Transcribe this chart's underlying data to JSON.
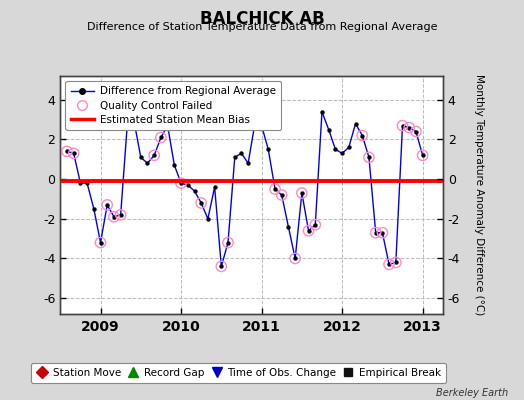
{
  "title": "BALCHICK AB",
  "subtitle": "Difference of Station Temperature Data from Regional Average",
  "ylabel": "Monthly Temperature Anomaly Difference (°C)",
  "bias_value": -0.1,
  "xlim": [
    2008.5,
    2013.25
  ],
  "ylim": [
    -6.8,
    5.2
  ],
  "background_color": "#d8d8d8",
  "plot_bg_color": "#ffffff",
  "grid_color": "#bbbbbb",
  "berkeley_earth_text": "Berkeley Earth",
  "x_values": [
    2008.583,
    2008.667,
    2008.75,
    2008.833,
    2008.917,
    2009.0,
    2009.083,
    2009.167,
    2009.25,
    2009.333,
    2009.417,
    2009.5,
    2009.583,
    2009.667,
    2009.75,
    2009.833,
    2009.917,
    2010.0,
    2010.083,
    2010.167,
    2010.25,
    2010.333,
    2010.417,
    2010.5,
    2010.583,
    2010.667,
    2010.75,
    2010.833,
    2010.917,
    2011.0,
    2011.083,
    2011.167,
    2011.25,
    2011.333,
    2011.417,
    2011.5,
    2011.583,
    2011.667,
    2011.75,
    2011.833,
    2011.917,
    2012.0,
    2012.083,
    2012.167,
    2012.25,
    2012.333,
    2012.417,
    2012.5,
    2012.583,
    2012.667,
    2012.75,
    2012.833,
    2012.917,
    2013.0
  ],
  "y_values": [
    1.4,
    1.3,
    -0.2,
    -0.2,
    -1.5,
    -3.2,
    -1.3,
    -1.9,
    -1.8,
    2.8,
    2.9,
    1.1,
    0.8,
    1.2,
    2.1,
    2.7,
    0.7,
    -0.2,
    -0.3,
    -0.6,
    -1.2,
    -2.0,
    -0.4,
    -4.4,
    -3.2,
    1.1,
    1.3,
    0.8,
    2.8,
    2.7,
    1.5,
    -0.5,
    -0.8,
    -2.4,
    -4.0,
    -0.7,
    -2.6,
    -2.3,
    3.4,
    2.5,
    1.5,
    1.3,
    1.6,
    2.8,
    2.2,
    1.1,
    -2.7,
    -2.7,
    -4.3,
    -4.2,
    2.7,
    2.6,
    2.4,
    1.2
  ],
  "qc_failed_indices": [
    0,
    1,
    5,
    6,
    7,
    8,
    13,
    14,
    15,
    17,
    20,
    23,
    24,
    28,
    29,
    31,
    32,
    34,
    35,
    36,
    37,
    44,
    45,
    46,
    47,
    48,
    49,
    50,
    51,
    52,
    53
  ],
  "line_color": "#0000ee",
  "dot_color": "#000000",
  "qc_color": "#ff88cc",
  "bias_color": "#ff0000",
  "yticks": [
    -6,
    -4,
    -2,
    0,
    2,
    4
  ],
  "xticks": [
    2009,
    2010,
    2011,
    2012,
    2013
  ]
}
